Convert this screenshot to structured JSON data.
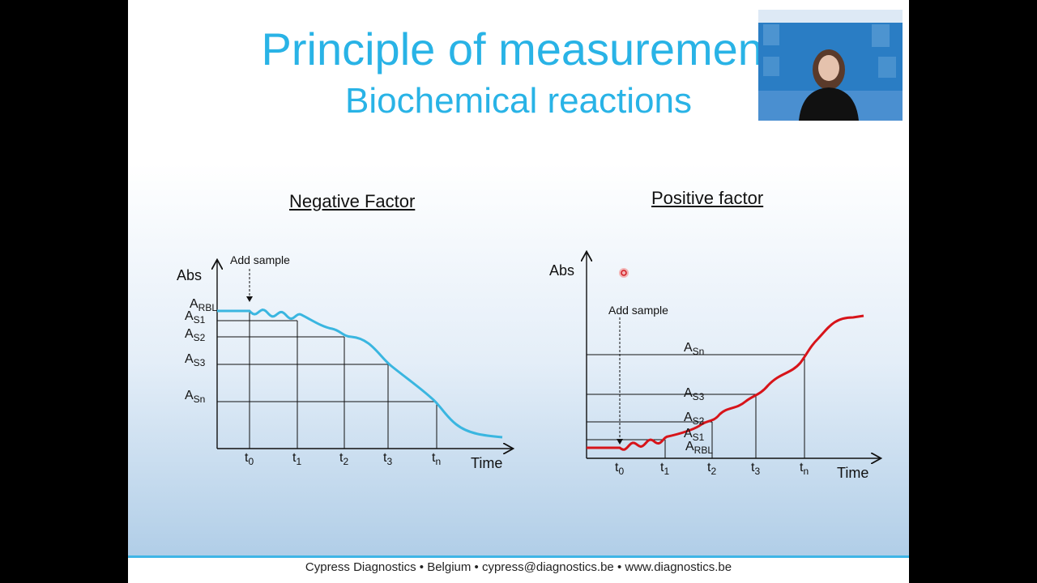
{
  "slide": {
    "title_line1": "Principle of measurement",
    "title_line2": "Biochemical reactions",
    "footer": "Cypress Diagnostics • Belgium • cypress@diagnostics.be • www.diagnostics.be"
  },
  "negative_chart": {
    "heading": "Negative Factor",
    "ylabel": "Abs",
    "xlabel": "Time",
    "annotation": "Add sample",
    "y_levels": [
      {
        "main": "A",
        "sub": "RBL"
      },
      {
        "main": "A",
        "sub": "S1"
      },
      {
        "main": "A",
        "sub": "S2"
      },
      {
        "main": "A",
        "sub": "S3"
      },
      {
        "main": "A",
        "sub": "Sn"
      }
    ],
    "x_ticks": [
      {
        "main": "t",
        "sub": "0"
      },
      {
        "main": "t",
        "sub": "1"
      },
      {
        "main": "t",
        "sub": "2"
      },
      {
        "main": "t",
        "sub": "3"
      },
      {
        "main": "t",
        "sub": "n"
      }
    ],
    "curve_color": "#3ab6e0"
  },
  "positive_chart": {
    "heading": "Positive factor",
    "ylabel": "Abs",
    "xlabel": "Time",
    "annotation": "Add sample",
    "y_levels": [
      {
        "main": "A",
        "sub": "Sn"
      },
      {
        "main": "A",
        "sub": "S3"
      },
      {
        "main": "A",
        "sub": "S2"
      },
      {
        "main": "A",
        "sub": "S1"
      },
      {
        "main": "A",
        "sub": "RBL"
      }
    ],
    "x_ticks": [
      {
        "main": "t",
        "sub": "0"
      },
      {
        "main": "t",
        "sub": "1"
      },
      {
        "main": "t",
        "sub": "2"
      },
      {
        "main": "t",
        "sub": "3"
      },
      {
        "main": "t",
        "sub": "n"
      }
    ],
    "curve_color": "#d7141a"
  },
  "pointer": {
    "color": "#e0242a"
  }
}
